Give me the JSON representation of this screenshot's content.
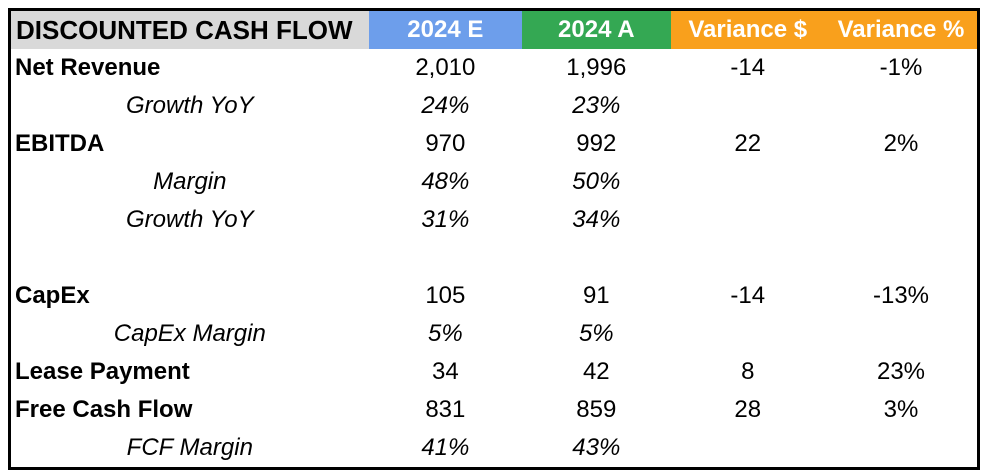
{
  "chart_data": {
    "type": "table",
    "title": "DISCOUNTED CASH FLOW",
    "columns": [
      {
        "label": "2024 E",
        "color": "#6D9EEB"
      },
      {
        "label": "2024 A",
        "color": "#34A853"
      },
      {
        "label": "Variance $",
        "color": "#F9A01C"
      },
      {
        "label": "Variance %",
        "color": "#F9A01C"
      }
    ],
    "rows": [
      {
        "label": "Net Revenue",
        "emphasis": "bold",
        "values": [
          "2,010",
          "1,996",
          "-14",
          "-1%"
        ]
      },
      {
        "label": "Growth YoY",
        "emphasis": "italic",
        "values": [
          "24%",
          "23%",
          "",
          ""
        ]
      },
      {
        "label": "EBITDA",
        "emphasis": "bold",
        "values": [
          "970",
          "992",
          "22",
          "2%"
        ]
      },
      {
        "label": "Margin",
        "emphasis": "italic",
        "values": [
          "48%",
          "50%",
          "",
          ""
        ]
      },
      {
        "label": "Growth YoY",
        "emphasis": "italic",
        "values": [
          "31%",
          "34%",
          "",
          ""
        ]
      },
      {
        "label": "",
        "emphasis": "none",
        "values": [
          "",
          "",
          "",
          ""
        ]
      },
      {
        "label": "CapEx",
        "emphasis": "bold",
        "values": [
          "105",
          "91",
          "-14",
          "-13%"
        ]
      },
      {
        "label": "CapEx Margin",
        "emphasis": "italic",
        "values": [
          "5%",
          "5%",
          "",
          ""
        ]
      },
      {
        "label": "Lease Payment",
        "emphasis": "bold",
        "values": [
          "34",
          "42",
          "8",
          "23%"
        ]
      },
      {
        "label": "Free Cash Flow",
        "emphasis": "bold",
        "values": [
          "831",
          "859",
          "28",
          "3%"
        ]
      },
      {
        "label": "FCF Margin",
        "emphasis": "italic",
        "values": [
          "41%",
          "43%",
          "",
          ""
        ]
      }
    ],
    "colors": {
      "title_bg": "#D9D9D9",
      "col_2024e_bg": "#6D9EEB",
      "col_2024a_bg": "#34A853",
      "variance_bg": "#F9A01C",
      "border": "#000000",
      "body_text": "#000000",
      "header_text": "#FFFFFF"
    }
  }
}
